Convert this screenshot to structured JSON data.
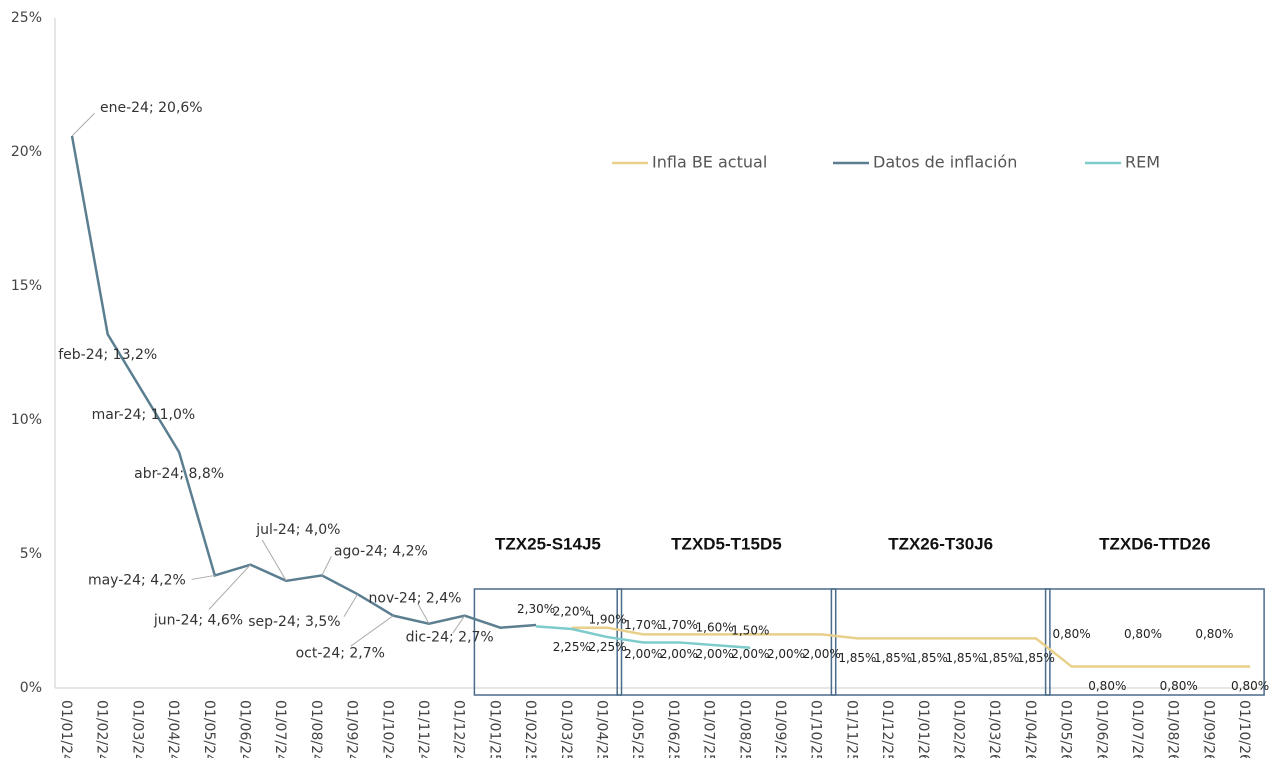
{
  "chart_data": {
    "type": "line",
    "categories": [
      "01/01/24",
      "01/02/24",
      "01/03/24",
      "01/04/24",
      "01/05/24",
      "01/06/24",
      "01/07/24",
      "01/08/24",
      "01/09/24",
      "01/10/24",
      "01/11/24",
      "01/12/24",
      "01/01/25",
      "01/02/25",
      "01/03/25",
      "01/04/25",
      "01/05/25",
      "01/06/25",
      "01/07/25",
      "01/08/25",
      "01/09/25",
      "01/10/25",
      "01/11/25",
      "01/12/25",
      "01/01/26",
      "01/02/26",
      "01/03/26",
      "01/04/26",
      "01/05/26",
      "01/06/26",
      "01/07/26",
      "01/08/26",
      "01/09/26",
      "01/10/26"
    ],
    "series": [
      {
        "name": "Infla BE actual",
        "color": "#e8d08a",
        "values": [
          null,
          null,
          null,
          null,
          null,
          null,
          null,
          null,
          null,
          null,
          null,
          null,
          null,
          null,
          2.25,
          2.25,
          2.0,
          2.0,
          2.0,
          2.0,
          2.0,
          2.0,
          1.85,
          1.85,
          1.85,
          1.85,
          1.85,
          1.85,
          0.8,
          0.8,
          0.8,
          0.8,
          0.8,
          0.8
        ],
        "value_labels": [
          null,
          null,
          null,
          null,
          null,
          null,
          null,
          null,
          null,
          null,
          null,
          null,
          null,
          null,
          "2,25%",
          "2,25%",
          "2,00%",
          "2,00%",
          "2,00%",
          "2,00%",
          "2,00%",
          "2,00%",
          "1,85%",
          "1,85%",
          "1,85%",
          "1,85%",
          "1,85%",
          "1,85%",
          "0,80%",
          "0,80%",
          "0,80%",
          "0,80%",
          "0,80%",
          "0,80%"
        ]
      },
      {
        "name": "Datos de inflación",
        "color": "#5b7f91",
        "values": [
          20.6,
          13.2,
          11.0,
          8.8,
          4.2,
          4.6,
          4.0,
          4.2,
          3.5,
          2.7,
          2.4,
          2.7,
          2.25,
          2.35,
          null,
          null,
          null,
          null,
          null,
          null,
          null,
          null,
          null,
          null,
          null,
          null,
          null,
          null,
          null,
          null,
          null,
          null,
          null,
          null
        ],
        "value_labels": [
          "ene-24; 20,6%",
          "feb-24; 13,2%",
          "mar-24; 11,0%",
          "abr-24; 8,8%",
          "may-24; 4,2%",
          "jun-24; 4,6%",
          "jul-24; 4,0%",
          "ago-24; 4,2%",
          "sep-24; 3,5%",
          "oct-24; 2,7%",
          "nov-24; 2,4%",
          "dic-24; 2,7%",
          null,
          null,
          null,
          null,
          null,
          null,
          null,
          null,
          null,
          null,
          null,
          null,
          null,
          null,
          null,
          null,
          null,
          null,
          null,
          null,
          null,
          null
        ]
      },
      {
        "name": "REM",
        "color": "#7ecbcb",
        "values": [
          null,
          null,
          null,
          null,
          null,
          null,
          null,
          null,
          null,
          null,
          null,
          null,
          null,
          2.3,
          2.2,
          1.9,
          1.7,
          1.7,
          1.6,
          1.5,
          null,
          null,
          null,
          null,
          null,
          null,
          null,
          null,
          null,
          null,
          null,
          null,
          null,
          null
        ],
        "value_labels": [
          null,
          null,
          null,
          null,
          null,
          null,
          null,
          null,
          null,
          null,
          null,
          null,
          null,
          "2,30%",
          "2,20%",
          "1,90%",
          "1,70%",
          "1,70%",
          "1,60%",
          "1,50%",
          null,
          null,
          null,
          null,
          null,
          null,
          null,
          null,
          null,
          null,
          null,
          null,
          null,
          null
        ]
      }
    ],
    "ylim": [
      0,
      25
    ],
    "yticks": [
      {
        "value": 0,
        "label": "0%"
      },
      {
        "value": 5,
        "label": "5%"
      },
      {
        "value": 10,
        "label": "10%"
      },
      {
        "value": 15,
        "label": "15%"
      },
      {
        "value": 20,
        "label": "20%"
      },
      {
        "value": 25,
        "label": "25%"
      }
    ],
    "legend": "top",
    "annotations": [
      {
        "text": "TZX25-S14J5",
        "range": [
          "01/01/25",
          "01/04/25"
        ]
      },
      {
        "text": "TZXD5-T15D5",
        "range": [
          "01/05/25",
          "01/10/25"
        ]
      },
      {
        "text": "TZX26-T30J6",
        "range": [
          "01/11/25",
          "01/04/26"
        ]
      },
      {
        "text": "TZXD6-TTD26",
        "range": [
          "01/05/26",
          "01/10/26"
        ]
      }
    ]
  }
}
